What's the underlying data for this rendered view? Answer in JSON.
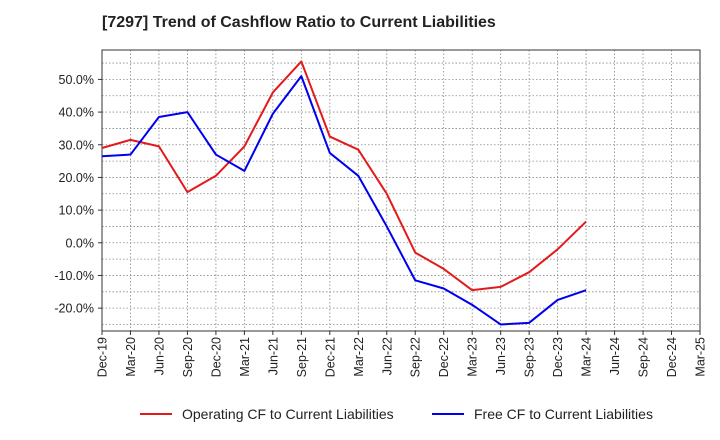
{
  "chart_data": {
    "type": "line",
    "title": "[7297]  Trend of Cashflow Ratio to Current Liabilities",
    "xlabel": "",
    "ylabel": "",
    "ylim": [
      -27,
      59
    ],
    "yticks": [
      -20,
      -10,
      0,
      10,
      20,
      30,
      40,
      50
    ],
    "ytick_labels": [
      "-20.0%",
      "-10.0%",
      "0.0%",
      "10.0%",
      "20.0%",
      "30.0%",
      "40.0%",
      "50.0%"
    ],
    "categories": [
      "Dec-19",
      "Mar-20",
      "Jun-20",
      "Sep-20",
      "Dec-20",
      "Mar-21",
      "Jun-21",
      "Sep-21",
      "Dec-21",
      "Mar-22",
      "Jun-22",
      "Sep-22",
      "Dec-22",
      "Mar-23",
      "Jun-23",
      "Sep-23",
      "Dec-23",
      "Mar-24",
      "Jun-24",
      "Sep-24",
      "Dec-24",
      "Mar-25"
    ],
    "grid": true,
    "legend_position": "bottom",
    "series": [
      {
        "name": "Operating CF to Current Liabilities",
        "color": "#e31a1c",
        "values": [
          29.0,
          31.5,
          29.5,
          15.5,
          20.5,
          29.5,
          46.0,
          55.5,
          32.5,
          28.5,
          15.0,
          -3.0,
          -8.0,
          -14.5,
          -13.5,
          -9.0,
          -2.0,
          6.5,
          null,
          null,
          null,
          null
        ]
      },
      {
        "name": "Free CF to Current Liabilities",
        "color": "#0000ee",
        "values": [
          26.5,
          27.0,
          38.5,
          40.0,
          27.0,
          22.0,
          39.5,
          51.0,
          27.5,
          20.5,
          5.0,
          -11.5,
          -14.0,
          -19.0,
          -25.0,
          -24.5,
          -17.5,
          -14.5,
          null,
          null,
          null,
          null
        ]
      }
    ]
  }
}
